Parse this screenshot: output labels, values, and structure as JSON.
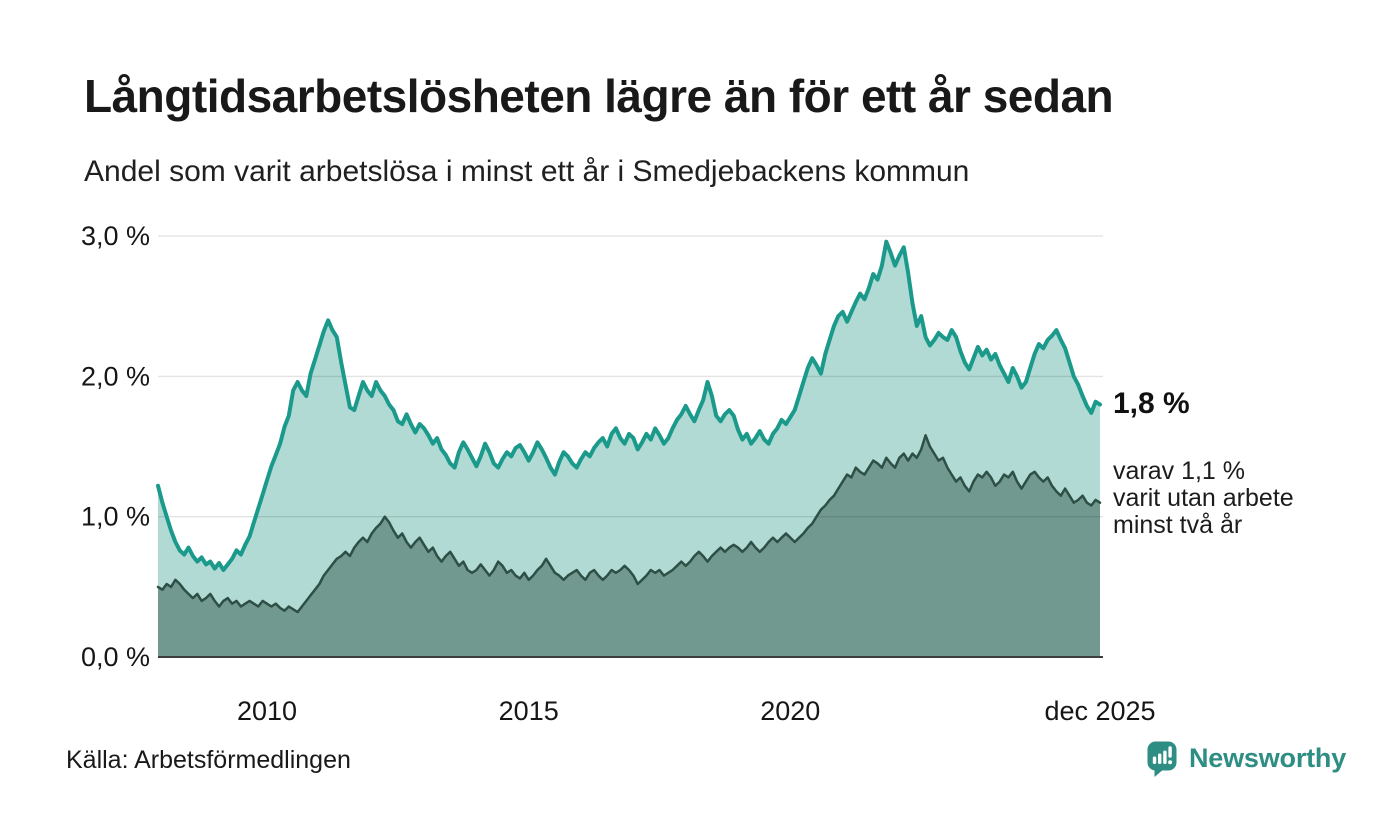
{
  "chart_data": {
    "type": "area",
    "title": "Långtidsarbetslösheten lägre än för ett år sedan",
    "subtitle": "Andel som varit arbetslösa i minst ett år i Smedjebackens kommun",
    "unit": "%",
    "frequency": "monthly",
    "x_domain": [
      2007.917,
      2025.917
    ],
    "ylim": [
      0,
      3.2
    ],
    "grid": true,
    "legend_position": "none",
    "grid_color": "rgba(0,0,0,0.11)",
    "axis_line_color": "#3d3d3d",
    "y_ticks": [
      {
        "value": 0,
        "label": "0,0 %"
      },
      {
        "value": 1,
        "label": "1,0 %"
      },
      {
        "value": 2,
        "label": "2,0 %"
      },
      {
        "value": 3,
        "label": "3,0 %"
      }
    ],
    "x_ticks": [
      {
        "t": 2010,
        "label": "2010"
      },
      {
        "t": 2015,
        "label": "2015"
      },
      {
        "t": 2020,
        "label": "2020"
      },
      {
        "t": 2025.917,
        "label": "dec 2025"
      }
    ],
    "annotation": {
      "value_label": "1,8 %",
      "note_line1": "varav 1,1 %",
      "note_line2": "varit utan arbete",
      "note_line3": "minst två år"
    },
    "series": [
      {
        "id": "total",
        "name": "Arbetslösa minst ett år",
        "latest_value": 1.8,
        "line_color": "#1b9a8c",
        "fill_color": "#b0dad3",
        "line_width": 4,
        "values": [
          1.22,
          1.1,
          1.0,
          0.9,
          0.82,
          0.76,
          0.73,
          0.78,
          0.72,
          0.68,
          0.71,
          0.66,
          0.68,
          0.63,
          0.67,
          0.62,
          0.66,
          0.7,
          0.76,
          0.73,
          0.8,
          0.86,
          0.96,
          1.06,
          1.16,
          1.26,
          1.36,
          1.44,
          1.52,
          1.64,
          1.72,
          1.9,
          1.96,
          1.9,
          1.86,
          2.02,
          2.12,
          2.22,
          2.32,
          2.4,
          2.33,
          2.28,
          2.1,
          1.94,
          1.78,
          1.76,
          1.86,
          1.96,
          1.9,
          1.86,
          1.96,
          1.9,
          1.86,
          1.8,
          1.76,
          1.68,
          1.66,
          1.73,
          1.66,
          1.6,
          1.66,
          1.63,
          1.58,
          1.52,
          1.56,
          1.48,
          1.44,
          1.38,
          1.35,
          1.46,
          1.53,
          1.48,
          1.42,
          1.36,
          1.43,
          1.52,
          1.46,
          1.38,
          1.35,
          1.41,
          1.46,
          1.43,
          1.49,
          1.51,
          1.46,
          1.4,
          1.46,
          1.53,
          1.48,
          1.42,
          1.35,
          1.3,
          1.39,
          1.46,
          1.43,
          1.38,
          1.35,
          1.41,
          1.46,
          1.43,
          1.49,
          1.53,
          1.56,
          1.5,
          1.59,
          1.63,
          1.56,
          1.52,
          1.59,
          1.56,
          1.48,
          1.53,
          1.59,
          1.55,
          1.63,
          1.58,
          1.52,
          1.56,
          1.63,
          1.69,
          1.73,
          1.79,
          1.73,
          1.68,
          1.76,
          1.83,
          1.96,
          1.86,
          1.72,
          1.68,
          1.73,
          1.76,
          1.72,
          1.62,
          1.55,
          1.59,
          1.52,
          1.56,
          1.61,
          1.55,
          1.52,
          1.59,
          1.63,
          1.69,
          1.66,
          1.71,
          1.76,
          1.86,
          1.96,
          2.06,
          2.13,
          2.08,
          2.02,
          2.16,
          2.26,
          2.36,
          2.43,
          2.46,
          2.39,
          2.46,
          2.53,
          2.59,
          2.55,
          2.63,
          2.73,
          2.69,
          2.79,
          2.96,
          2.88,
          2.79,
          2.86,
          2.92,
          2.74,
          2.52,
          2.36,
          2.43,
          2.28,
          2.22,
          2.26,
          2.31,
          2.28,
          2.26,
          2.33,
          2.28,
          2.18,
          2.1,
          2.05,
          2.13,
          2.21,
          2.15,
          2.19,
          2.12,
          2.16,
          2.08,
          2.02,
          1.96,
          2.06,
          2.0,
          1.92,
          1.96,
          2.06,
          2.16,
          2.23,
          2.2,
          2.26,
          2.29,
          2.33,
          2.26,
          2.2,
          2.1,
          2.0,
          1.94,
          1.86,
          1.79,
          1.74,
          1.82,
          1.8
        ]
      },
      {
        "id": "two-years",
        "name": "Varit utan arbete minst två år",
        "latest_value": 1.1,
        "line_color": "#2e4f45",
        "fill_color": "#71998f",
        "line_width": 2.5,
        "values": [
          0.5,
          0.48,
          0.52,
          0.5,
          0.55,
          0.52,
          0.48,
          0.45,
          0.42,
          0.45,
          0.4,
          0.42,
          0.45,
          0.4,
          0.36,
          0.4,
          0.42,
          0.38,
          0.4,
          0.36,
          0.38,
          0.4,
          0.38,
          0.36,
          0.4,
          0.38,
          0.36,
          0.38,
          0.35,
          0.33,
          0.36,
          0.34,
          0.32,
          0.36,
          0.4,
          0.44,
          0.48,
          0.52,
          0.58,
          0.62,
          0.66,
          0.7,
          0.72,
          0.75,
          0.72,
          0.78,
          0.82,
          0.85,
          0.82,
          0.88,
          0.92,
          0.95,
          1.0,
          0.96,
          0.9,
          0.85,
          0.88,
          0.82,
          0.78,
          0.82,
          0.85,
          0.8,
          0.75,
          0.78,
          0.72,
          0.68,
          0.72,
          0.75,
          0.7,
          0.65,
          0.68,
          0.62,
          0.6,
          0.62,
          0.66,
          0.62,
          0.58,
          0.62,
          0.68,
          0.65,
          0.6,
          0.62,
          0.58,
          0.56,
          0.6,
          0.55,
          0.58,
          0.62,
          0.65,
          0.7,
          0.65,
          0.6,
          0.58,
          0.55,
          0.58,
          0.6,
          0.62,
          0.58,
          0.55,
          0.6,
          0.62,
          0.58,
          0.55,
          0.58,
          0.62,
          0.6,
          0.62,
          0.65,
          0.62,
          0.58,
          0.52,
          0.55,
          0.58,
          0.62,
          0.6,
          0.62,
          0.58,
          0.6,
          0.62,
          0.65,
          0.68,
          0.65,
          0.68,
          0.72,
          0.75,
          0.72,
          0.68,
          0.72,
          0.75,
          0.78,
          0.75,
          0.78,
          0.8,
          0.78,
          0.75,
          0.78,
          0.82,
          0.78,
          0.75,
          0.78,
          0.82,
          0.85,
          0.82,
          0.85,
          0.88,
          0.85,
          0.82,
          0.85,
          0.88,
          0.92,
          0.95,
          1.0,
          1.05,
          1.08,
          1.12,
          1.15,
          1.2,
          1.25,
          1.3,
          1.28,
          1.35,
          1.32,
          1.3,
          1.35,
          1.4,
          1.38,
          1.35,
          1.42,
          1.38,
          1.35,
          1.42,
          1.45,
          1.4,
          1.45,
          1.42,
          1.48,
          1.58,
          1.5,
          1.45,
          1.4,
          1.42,
          1.35,
          1.3,
          1.25,
          1.28,
          1.22,
          1.18,
          1.25,
          1.3,
          1.28,
          1.32,
          1.28,
          1.22,
          1.25,
          1.3,
          1.28,
          1.32,
          1.25,
          1.2,
          1.25,
          1.3,
          1.32,
          1.28,
          1.25,
          1.28,
          1.22,
          1.18,
          1.15,
          1.2,
          1.15,
          1.1,
          1.12,
          1.15,
          1.1,
          1.08,
          1.12,
          1.1
        ]
      }
    ]
  },
  "footer": {
    "source_label": "Källa: Arbetsförmedlingen",
    "brand_name": "Newsworthy",
    "brand_color": "#2e8e84"
  }
}
